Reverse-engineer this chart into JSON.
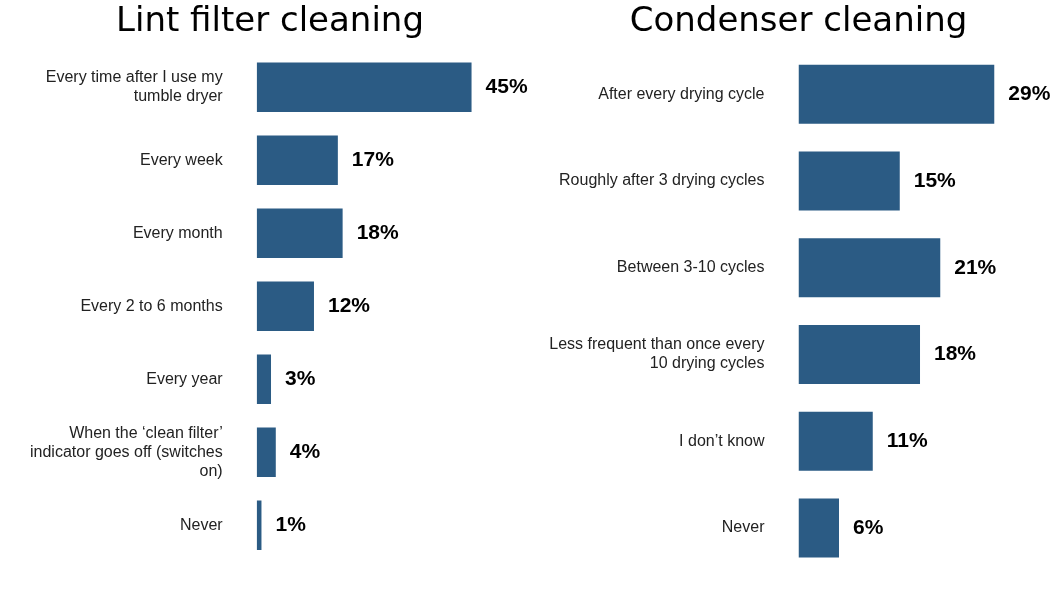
{
  "chart_data": [
    {
      "type": "bar",
      "orientation": "horizontal",
      "title": "Lint filter cleaning",
      "color": "#2b5b84",
      "categories": [
        "Every time after I use my tumble dryer",
        "Every week",
        "Every month",
        "Every 2 to 6 months",
        "Every year",
        "When the ‘clean filter’ indicator goes off (switches on)",
        "Never"
      ],
      "values": [
        45,
        17,
        18,
        12,
        3,
        4,
        1
      ],
      "value_labels": [
        "45%",
        "17%",
        "18%",
        "12%",
        "3%",
        "4%",
        "1%"
      ]
    },
    {
      "type": "bar",
      "orientation": "horizontal",
      "title": "Condenser cleaning",
      "color": "#2b5b84",
      "categories": [
        "After every drying cycle",
        "Roughly after 3 drying cycles",
        "Between 3-10 cycles",
        "Less frequent than once every 10 drying cycles",
        "I don’t know",
        "Never"
      ],
      "values": [
        29,
        15,
        21,
        18,
        11,
        6
      ],
      "value_labels": [
        "29%",
        "15%",
        "21%",
        "18%",
        "11%",
        "6%"
      ]
    }
  ]
}
